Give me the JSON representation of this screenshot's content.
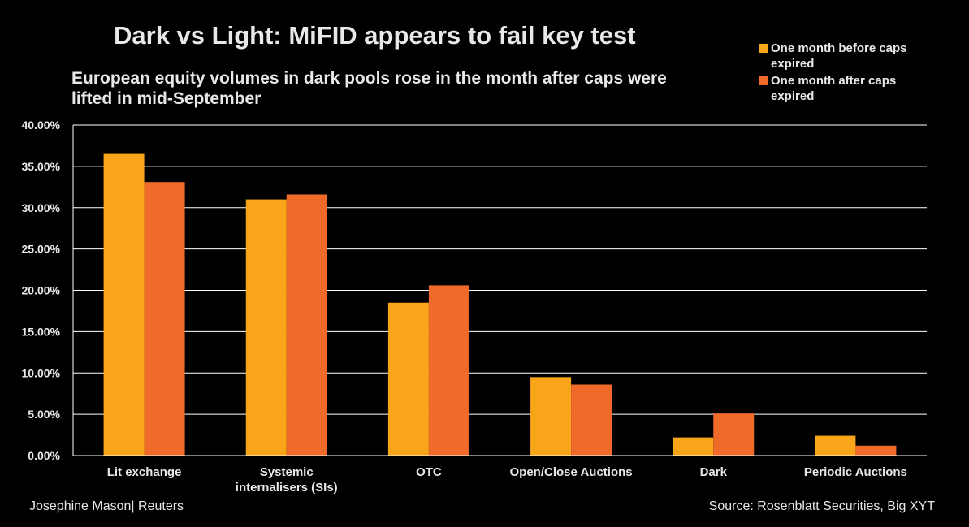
{
  "header": {
    "title": "Dark vs Light: MiFID appears to fail key test",
    "subtitle": "European equity volumes in dark pools rose in the month after caps were lifted in mid-September"
  },
  "footer": {
    "author": "Josephine Mason| Reuters",
    "source": "Source: Rosenblatt Securities, Big XYT"
  },
  "colors": {
    "before": "#F9A51A",
    "after": "#F06A2A",
    "grid": "#ffffff"
  },
  "chart_data": {
    "type": "bar",
    "categories": [
      "Lit exchange",
      "Systemic internalisers (SIs)",
      "OTC",
      "Open/Close Auctions",
      "Dark",
      "Periodic Auctions"
    ],
    "category_lines": [
      [
        "Lit exchange"
      ],
      [
        "Systemic",
        "internalisers (SIs)"
      ],
      [
        "OTC"
      ],
      [
        "Open/Close Auctions"
      ],
      [
        "Dark"
      ],
      [
        "Periodic Auctions"
      ]
    ],
    "series": [
      {
        "name": "One month before caps expired",
        "values": [
          36.5,
          31.0,
          18.5,
          9.5,
          2.2,
          2.4
        ]
      },
      {
        "name": "One month after caps expired",
        "values": [
          33.1,
          31.6,
          20.6,
          8.6,
          5.1,
          1.2
        ]
      }
    ],
    "ylim": [
      0,
      40
    ],
    "yticks": [
      "0.00%",
      "5.00%",
      "10.00%",
      "15.00%",
      "20.00%",
      "25.00%",
      "30.00%",
      "35.00%",
      "40.00%"
    ],
    "grid": true,
    "legend_position": "top-right"
  }
}
